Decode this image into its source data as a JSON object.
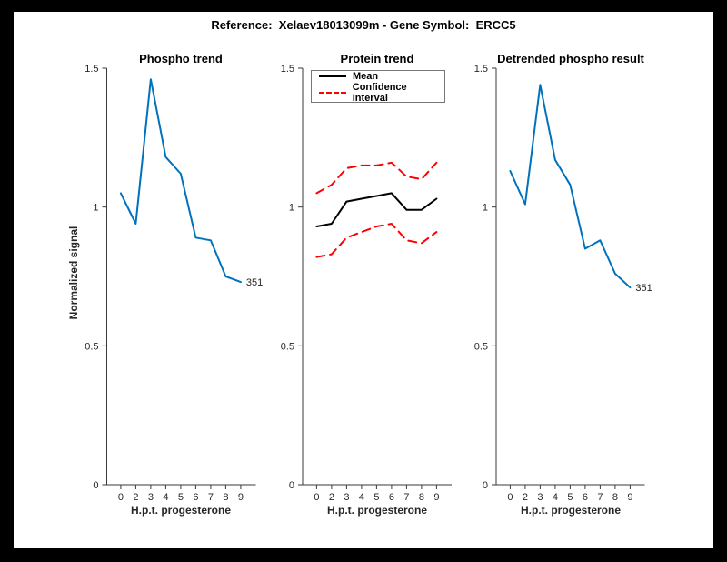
{
  "figure": {
    "title": "Reference:  Xelaev18013099m - Gene Symbol:  ERCC5",
    "background": "#ffffff",
    "frame_color": "#000000"
  },
  "axes": {
    "ylabel": "Normalized signal",
    "xlabel": "H.p.t. progesterone",
    "ylim": [
      0,
      1.5
    ],
    "yticks": [
      0,
      0.5,
      1,
      1.5
    ],
    "ytick_labels": [
      "0",
      "0.5",
      "1",
      "1.5"
    ],
    "xtick_labels": [
      "0",
      "2",
      "3",
      "4",
      "5",
      "6",
      "7",
      "8",
      "9"
    ],
    "axis_color": "#3a3a3a"
  },
  "legend": {
    "position": "top-left-of-middle-subplot",
    "entries": [
      {
        "label": "Mean",
        "color": "#000000",
        "style": "solid"
      },
      {
        "label": "Confidence Interval",
        "color": "#ff0000",
        "style": "dashed"
      }
    ]
  },
  "colors": {
    "blue": "#0072BD",
    "red": "#ff0000",
    "black": "#000000"
  },
  "chart_data": [
    {
      "type": "line",
      "title": "Phospho trend",
      "xlabel": "H.p.t. progesterone",
      "ylabel": "Normalized signal",
      "ylim": [
        0,
        1.5
      ],
      "x_labels": [
        "0",
        "2",
        "3",
        "4",
        "5",
        "6",
        "7",
        "8",
        "9"
      ],
      "series": [
        {
          "name": "phospho-signal",
          "color": "#0072BD",
          "style": "solid",
          "values": [
            1.05,
            0.94,
            1.46,
            1.18,
            1.12,
            0.89,
            0.88,
            0.75,
            0.73
          ]
        }
      ],
      "end_label": "351",
      "grid": false
    },
    {
      "type": "line",
      "title": "Protein trend",
      "xlabel": "H.p.t. progesterone",
      "ylim": [
        0,
        1.5
      ],
      "x_labels": [
        "0",
        "2",
        "3",
        "4",
        "5",
        "6",
        "7",
        "8",
        "9"
      ],
      "legend_position": "northwest",
      "series": [
        {
          "name": "mean",
          "color": "#000000",
          "style": "solid",
          "values": [
            0.93,
            0.94,
            1.02,
            1.03,
            1.04,
            1.05,
            0.99,
            0.99,
            1.03
          ]
        },
        {
          "name": "confidence-interval-upper",
          "color": "#ff0000",
          "style": "dashed",
          "values": [
            1.05,
            1.08,
            1.14,
            1.15,
            1.15,
            1.16,
            1.11,
            1.1,
            1.16
          ]
        },
        {
          "name": "confidence-interval-lower",
          "color": "#ff0000",
          "style": "dashed",
          "values": [
            0.82,
            0.83,
            0.89,
            0.91,
            0.93,
            0.94,
            0.88,
            0.87,
            0.91
          ]
        }
      ],
      "end_label": null,
      "grid": false
    },
    {
      "type": "line",
      "title": "Detrended phospho result",
      "xlabel": "H.p.t. progesterone",
      "ylim": [
        0,
        1.5
      ],
      "x_labels": [
        "0",
        "2",
        "3",
        "4",
        "5",
        "6",
        "7",
        "8",
        "9"
      ],
      "series": [
        {
          "name": "detrended-phospho",
          "color": "#0072BD",
          "style": "solid",
          "values": [
            1.13,
            1.01,
            1.44,
            1.17,
            1.08,
            0.85,
            0.88,
            0.76,
            0.71
          ]
        }
      ],
      "end_label": "351",
      "grid": false
    }
  ]
}
